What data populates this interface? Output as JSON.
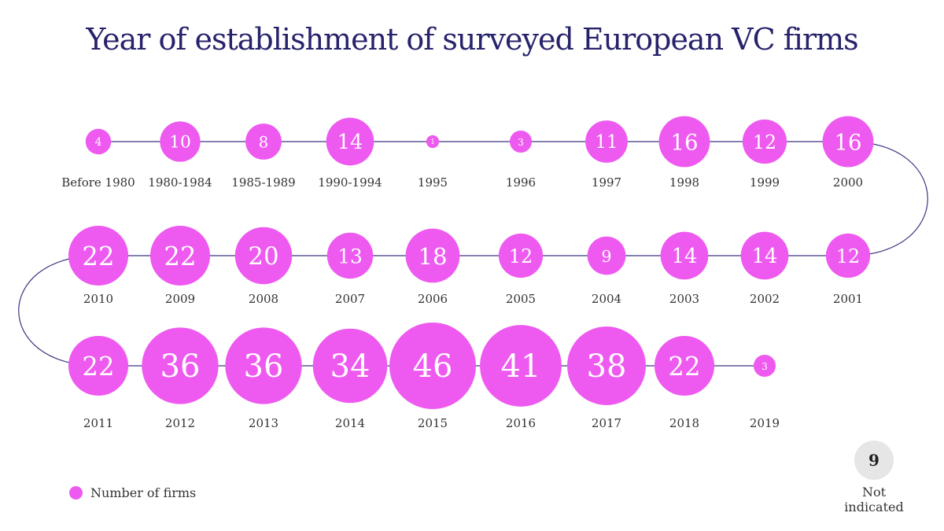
{
  "chart_data": {
    "type": "bubble-timeline",
    "title": "Year of establishment of surveyed European VC firms",
    "legend_label": "Number of firms",
    "bubble_color": "#ee5af0",
    "line_color": "#3b3680",
    "title_color": "#26236b",
    "categories": [
      "Before 1980",
      "1980-1984",
      "1985-1989",
      "1990-1994",
      "1995",
      "1996",
      "1997",
      "1998",
      "1999",
      "2000",
      "2001",
      "2002",
      "2003",
      "2004",
      "2005",
      "2006",
      "2007",
      "2008",
      "2009",
      "2010",
      "2011",
      "2012",
      "2013",
      "2014",
      "2015",
      "2016",
      "2017",
      "2018",
      "2019"
    ],
    "values": [
      4,
      10,
      8,
      14,
      1,
      3,
      11,
      16,
      12,
      16,
      12,
      14,
      14,
      9,
      12,
      18,
      13,
      20,
      22,
      22,
      22,
      36,
      36,
      34,
      46,
      41,
      38,
      22,
      3
    ],
    "not_indicated": {
      "value": 9,
      "label": "Not indicated"
    }
  }
}
